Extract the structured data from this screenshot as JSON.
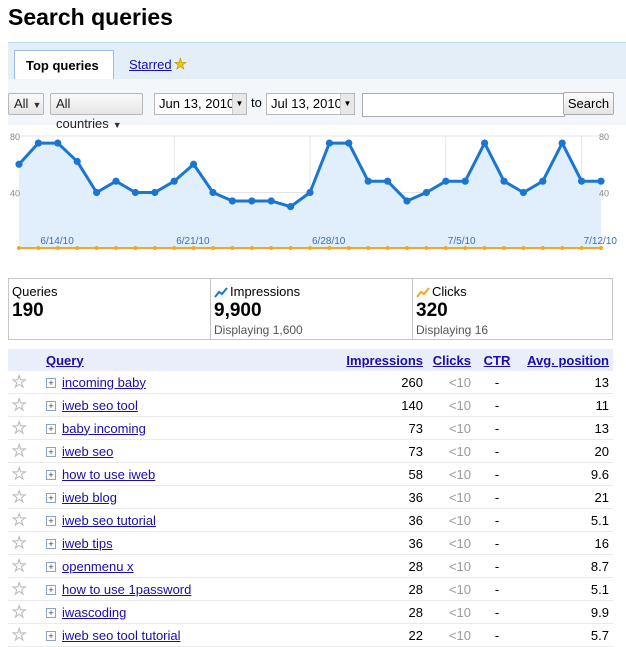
{
  "page": {
    "title": "Search queries"
  },
  "tabs": {
    "active": "Top queries",
    "starred": "Starred"
  },
  "filters": {
    "type": "All",
    "country": "All countries",
    "date_from": "Jun 13, 2010",
    "to_label": "to",
    "date_to": "Jul 13, 2010",
    "search_value": "",
    "search_button": "Search"
  },
  "colors": {
    "impressions_line": "#1b76d2",
    "clicks_line": "#f5a623",
    "area_fill": "#e1eefb"
  },
  "chart_data": {
    "type": "line",
    "x_tick_labels": [
      "6/14/10",
      "6/21/10",
      "6/28/10",
      "7/5/10",
      "7/12/10"
    ],
    "y_tick_labels_left": [
      "80",
      "40"
    ],
    "y_tick_labels_right": [
      "80",
      "40"
    ],
    "ylim": [
      0,
      80
    ],
    "grid": true,
    "series": [
      {
        "name": "Impressions",
        "values": [
          60,
          75,
          75,
          62,
          40,
          48,
          40,
          40,
          48,
          60,
          40,
          34,
          34,
          34,
          30,
          40,
          75,
          75,
          48,
          48,
          34,
          40,
          48,
          48,
          75,
          48,
          40,
          48,
          75,
          48,
          48
        ]
      },
      {
        "name": "Clicks",
        "values": [
          0,
          0,
          0,
          0,
          0,
          0,
          0,
          0,
          0,
          0,
          0,
          0,
          0,
          0,
          0,
          0,
          0,
          0,
          0,
          0,
          0,
          0,
          0,
          0,
          0,
          0,
          0,
          0,
          0,
          0,
          0
        ]
      }
    ]
  },
  "stats": {
    "queries": {
      "label": "Queries",
      "value": "190"
    },
    "impressions": {
      "label": "Impressions",
      "value": "9,900",
      "sub": "Displaying 1,600"
    },
    "clicks": {
      "label": "Clicks",
      "value": "320",
      "sub": "Displaying 16"
    }
  },
  "table": {
    "headers": {
      "query": "Query",
      "impressions": "Impressions",
      "clicks": "Clicks",
      "ctr": "CTR",
      "avg_position": "Avg. position"
    },
    "rows": [
      {
        "query": "incoming baby",
        "impressions": "260",
        "clicks": "<10",
        "ctr": "-",
        "position": "13"
      },
      {
        "query": "iweb seo tool",
        "impressions": "140",
        "clicks": "<10",
        "ctr": "-",
        "position": "11"
      },
      {
        "query": "baby incoming",
        "impressions": "73",
        "clicks": "<10",
        "ctr": "-",
        "position": "13"
      },
      {
        "query": "iweb seo",
        "impressions": "73",
        "clicks": "<10",
        "ctr": "-",
        "position": "20"
      },
      {
        "query": "how to use iweb",
        "impressions": "58",
        "clicks": "<10",
        "ctr": "-",
        "position": "9.6"
      },
      {
        "query": "iweb blog",
        "impressions": "36",
        "clicks": "<10",
        "ctr": "-",
        "position": "21"
      },
      {
        "query": "iweb seo tutorial",
        "impressions": "36",
        "clicks": "<10",
        "ctr": "-",
        "position": "5.1"
      },
      {
        "query": "iweb tips",
        "impressions": "36",
        "clicks": "<10",
        "ctr": "-",
        "position": "16"
      },
      {
        "query": "openmenu x",
        "impressions": "28",
        "clicks": "<10",
        "ctr": "-",
        "position": "8.7"
      },
      {
        "query": "how to use 1password",
        "impressions": "28",
        "clicks": "<10",
        "ctr": "-",
        "position": "5.1"
      },
      {
        "query": "iwascoding",
        "impressions": "28",
        "clicks": "<10",
        "ctr": "-",
        "position": "9.9"
      },
      {
        "query": "iweb seo tool tutorial",
        "impressions": "22",
        "clicks": "<10",
        "ctr": "-",
        "position": "5.7"
      }
    ]
  }
}
